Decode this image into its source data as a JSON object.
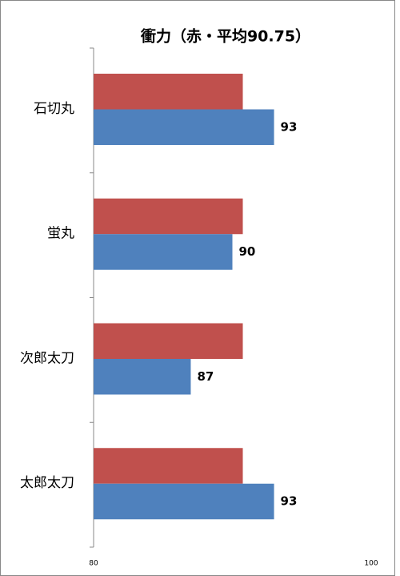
{
  "chart_data": {
    "type": "hbar",
    "title": "衝力（赤・平均90.75）",
    "categories": [
      "石切丸",
      "蛍丸",
      "次郎太刀",
      "太郎太刀"
    ],
    "series": [
      {
        "color": "#c0504d",
        "values": [
          90.75,
          90.75,
          90.75,
          90.75
        ],
        "data_labels": false
      },
      {
        "color": "#4f81bd",
        "values": [
          93,
          90,
          87,
          93
        ],
        "data_labels": true
      }
    ],
    "xlim": [
      80,
      100
    ],
    "xticks": [
      80,
      100
    ],
    "grid": false
  }
}
